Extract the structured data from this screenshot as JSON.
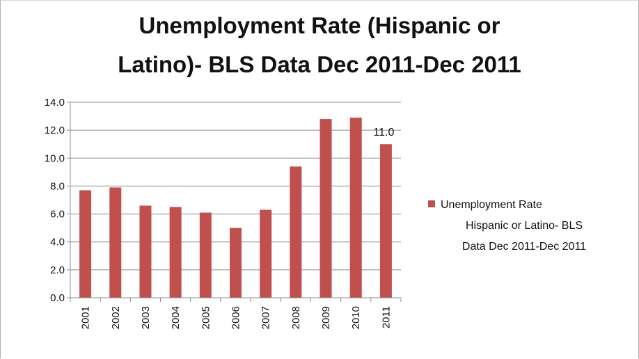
{
  "chart_data": {
    "type": "bar",
    "title_lines": [
      "Unemployment Rate (Hispanic or",
      "Latino)- BLS Data Dec 2011-Dec 2011"
    ],
    "categories": [
      "2001",
      "2002",
      "2003",
      "2004",
      "2005",
      "2006",
      "2007",
      "2008",
      "2009",
      "2010",
      "2011"
    ],
    "series": [
      {
        "name": "Unemployment Rate Hispanic or Latino- BLS Data Dec 2011-Dec 2011",
        "values": [
          7.7,
          7.9,
          6.6,
          6.5,
          6.1,
          5.0,
          6.3,
          9.4,
          12.8,
          12.9,
          11.0
        ],
        "color": "#c0504d"
      }
    ],
    "data_labels": [
      {
        "index": 10,
        "text": "11.0"
      }
    ],
    "legend_lines": [
      "Unemployment Rate",
      "Hispanic or Latino- BLS",
      "Data Dec 2011-Dec 2011"
    ],
    "y_ticks": [
      "0.0",
      "2.0",
      "4.0",
      "6.0",
      "8.0",
      "10.0",
      "12.0",
      "14.0"
    ],
    "ylim": [
      0,
      14
    ],
    "grid": true,
    "legend_position": "right",
    "gridline_color": "#8c8c8c",
    "axis_color": "#8c8c8c"
  }
}
